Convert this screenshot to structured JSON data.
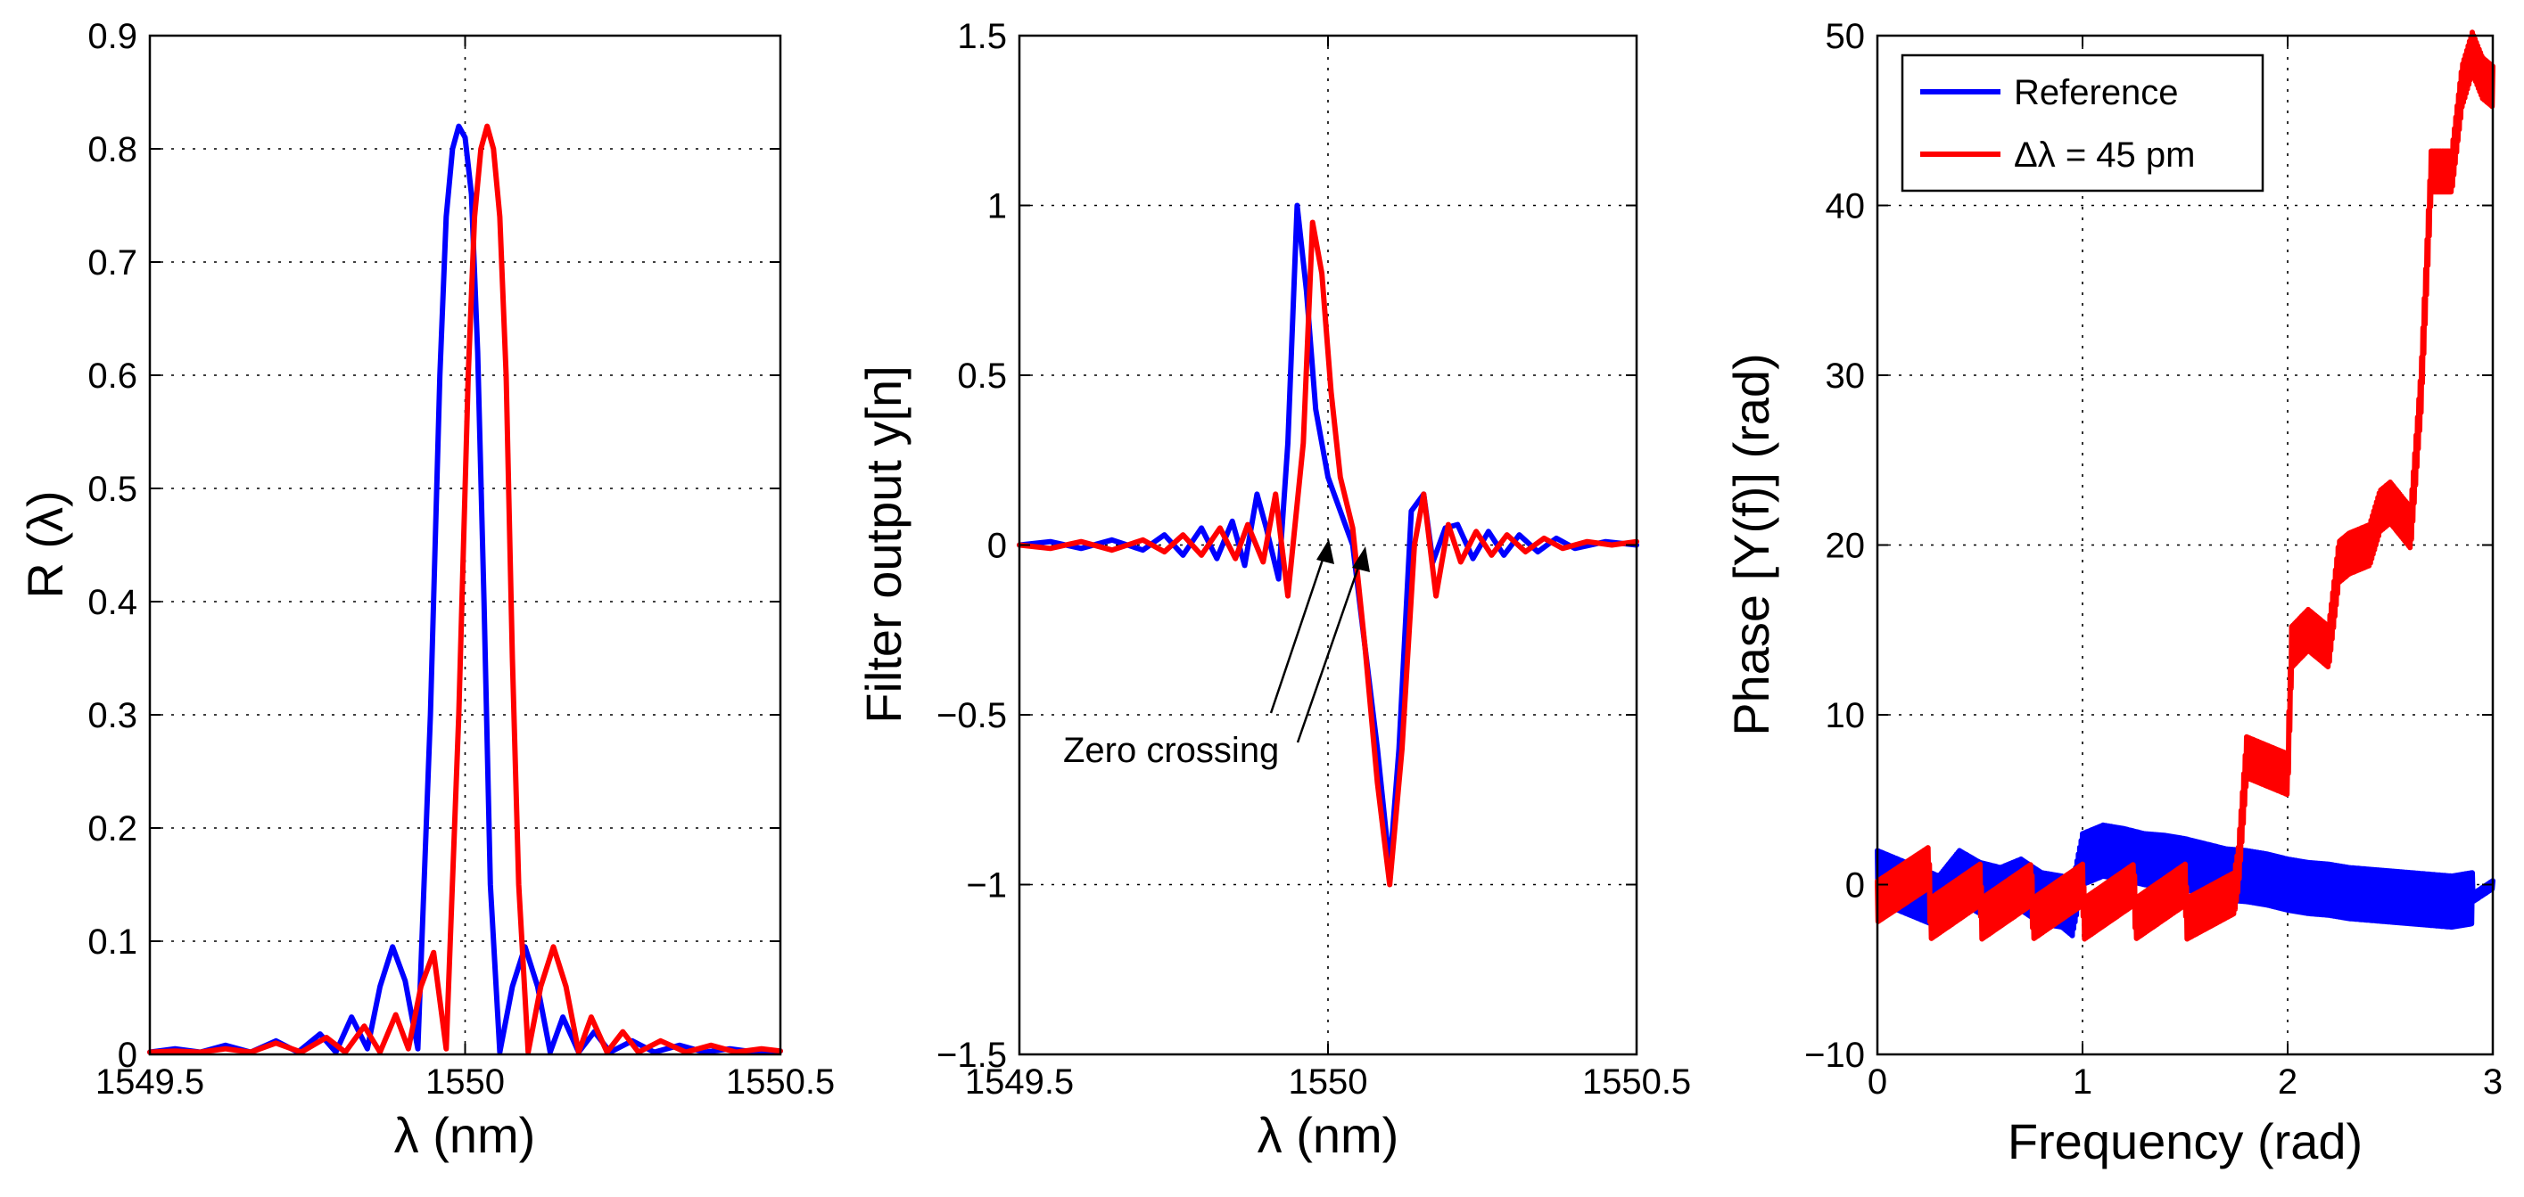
{
  "chart_data": [
    {
      "type": "line",
      "xlabel": "λ (nm)",
      "ylabel": "R (λ)",
      "xlim": [
        1549.5,
        1550.5
      ],
      "ylim": [
        0,
        0.9
      ],
      "xticks": [
        1549.5,
        1550,
        1550.5
      ],
      "xtick_labels": [
        "1549.5",
        "1550",
        "1550.5"
      ],
      "yticks": [
        0,
        0.1,
        0.2,
        0.3,
        0.4,
        0.5,
        0.6,
        0.7,
        0.8,
        0.9
      ],
      "ytick_labels": [
        "0",
        "0.1",
        "0.2",
        "0.3",
        "0.4",
        "0.5",
        "0.6",
        "0.7",
        "0.8",
        "0.9"
      ],
      "grid": true,
      "series": [
        {
          "name": "Reference",
          "color": "#0000ff",
          "x": [
            1549.5,
            1549.54,
            1549.58,
            1549.62,
            1549.66,
            1549.7,
            1549.735,
            1549.77,
            1549.795,
            1549.82,
            1549.845,
            1549.865,
            1549.885,
            1549.905,
            1549.925,
            1549.945,
            1549.96,
            1549.97,
            1549.98,
            1549.99,
            1550.0,
            1550.01,
            1550.02,
            1550.03,
            1550.04,
            1550.055,
            1550.075,
            1550.095,
            1550.115,
            1550.135,
            1550.155,
            1550.18,
            1550.205,
            1550.23,
            1550.265,
            1550.3,
            1550.34,
            1550.38,
            1550.42,
            1550.46,
            1550.5
          ],
          "y": [
            0.002,
            0.005,
            0.002,
            0.008,
            0.002,
            0.012,
            0.002,
            0.018,
            0.002,
            0.033,
            0.005,
            0.06,
            0.095,
            0.065,
            0.005,
            0.3,
            0.6,
            0.74,
            0.8,
            0.82,
            0.81,
            0.76,
            0.62,
            0.4,
            0.15,
            0.002,
            0.06,
            0.095,
            0.06,
            0.002,
            0.033,
            0.002,
            0.02,
            0.002,
            0.012,
            0.002,
            0.008,
            0.002,
            0.005,
            0.002,
            0.003
          ]
        },
        {
          "name": "Δλ = 45 pm",
          "color": "#ff0000",
          "x": [
            1549.5,
            1549.54,
            1549.58,
            1549.62,
            1549.66,
            1549.7,
            1549.74,
            1549.78,
            1549.81,
            1549.84,
            1549.865,
            1549.89,
            1549.91,
            1549.93,
            1549.95,
            1549.97,
            1549.99,
            1550.005,
            1550.015,
            1550.025,
            1550.035,
            1550.045,
            1550.055,
            1550.065,
            1550.075,
            1550.085,
            1550.1,
            1550.12,
            1550.14,
            1550.16,
            1550.18,
            1550.2,
            1550.225,
            1550.25,
            1550.275,
            1550.31,
            1550.35,
            1550.39,
            1550.43,
            1550.47,
            1550.5
          ],
          "y": [
            0.002,
            0.003,
            0.002,
            0.005,
            0.002,
            0.01,
            0.002,
            0.015,
            0.002,
            0.025,
            0.002,
            0.035,
            0.005,
            0.06,
            0.09,
            0.005,
            0.3,
            0.6,
            0.74,
            0.8,
            0.82,
            0.8,
            0.74,
            0.6,
            0.35,
            0.15,
            0.002,
            0.06,
            0.095,
            0.06,
            0.002,
            0.033,
            0.002,
            0.02,
            0.002,
            0.012,
            0.002,
            0.008,
            0.002,
            0.005,
            0.003
          ]
        }
      ]
    },
    {
      "type": "line",
      "xlabel": "λ (nm)",
      "ylabel": "Filter output y[n]",
      "xlim": [
        1549.5,
        1550.5
      ],
      "ylim": [
        -1.5,
        1.5
      ],
      "xticks": [
        1549.5,
        1550,
        1550.5
      ],
      "xtick_labels": [
        "1549.5",
        "1550",
        "1550.5"
      ],
      "yticks": [
        -1.5,
        -1,
        -0.5,
        0,
        0.5,
        1,
        1.5
      ],
      "ytick_labels": [
        "−1.5",
        "−1",
        "−0.5",
        "0",
        "0.5",
        "1",
        "1.5"
      ],
      "grid": true,
      "annotation": {
        "text": "Zero crossing",
        "arrow_targets": [
          [
            1549.999,
            0.0
          ],
          [
            1550.045,
            0.0
          ]
        ],
        "text_anchor": [
          1549.95,
          -0.57
        ]
      },
      "series": [
        {
          "name": "Reference",
          "color": "#0000ff",
          "x": [
            1549.5,
            1549.55,
            1549.6,
            1549.65,
            1549.7,
            1549.735,
            1549.765,
            1549.795,
            1549.82,
            1549.845,
            1549.865,
            1549.885,
            1549.9,
            1549.92,
            1549.935,
            1549.95,
            1549.965,
            1549.98,
            1550.0,
            1550.02,
            1550.04,
            1550.06,
            1550.08,
            1550.1,
            1550.115,
            1550.135,
            1550.155,
            1550.17,
            1550.19,
            1550.21,
            1550.235,
            1550.26,
            1550.285,
            1550.31,
            1550.34,
            1550.37,
            1550.4,
            1550.45,
            1550.5
          ],
          "y": [
            0.0,
            0.01,
            -0.01,
            0.015,
            -0.015,
            0.03,
            -0.03,
            0.05,
            -0.04,
            0.07,
            -0.06,
            0.15,
            0.05,
            -0.1,
            0.3,
            1.0,
            0.75,
            0.4,
            0.2,
            0.1,
            0.0,
            -0.3,
            -0.6,
            -0.95,
            -0.6,
            0.1,
            0.15,
            -0.05,
            0.05,
            0.06,
            -0.04,
            0.04,
            -0.03,
            0.03,
            -0.02,
            0.02,
            -0.01,
            0.01,
            0.0
          ]
        },
        {
          "name": "Δλ = 45 pm",
          "color": "#ff0000",
          "x": [
            1549.5,
            1549.55,
            1549.6,
            1549.65,
            1549.7,
            1549.735,
            1549.765,
            1549.795,
            1549.825,
            1549.85,
            1549.87,
            1549.895,
            1549.915,
            1549.935,
            1549.96,
            1549.975,
            1549.99,
            1550.005,
            1550.02,
            1550.04,
            1550.06,
            1550.08,
            1550.1,
            1550.12,
            1550.14,
            1550.155,
            1550.175,
            1550.195,
            1550.215,
            1550.24,
            1550.265,
            1550.29,
            1550.32,
            1550.35,
            1550.38,
            1550.42,
            1550.46,
            1550.5
          ],
          "y": [
            0.0,
            -0.01,
            0.01,
            -0.015,
            0.015,
            -0.02,
            0.03,
            -0.03,
            0.05,
            -0.04,
            0.06,
            -0.05,
            0.15,
            -0.15,
            0.3,
            0.95,
            0.8,
            0.45,
            0.2,
            0.05,
            -0.3,
            -0.7,
            -1.0,
            -0.6,
            0.0,
            0.15,
            -0.15,
            0.06,
            -0.05,
            0.04,
            -0.03,
            0.03,
            -0.02,
            0.02,
            -0.01,
            0.01,
            0.0,
            0.01
          ]
        }
      ]
    },
    {
      "type": "line",
      "xlabel": "Frequency (rad)",
      "ylabel": "Phase [Y(f)] (rad)",
      "xlim": [
        0,
        3
      ],
      "ylim": [
        -10,
        50
      ],
      "xticks": [
        0,
        1,
        2,
        3
      ],
      "xtick_labels": [
        "0",
        "1",
        "2",
        "3"
      ],
      "yticks": [
        -10,
        0,
        10,
        20,
        30,
        40,
        50
      ],
      "ytick_labels": [
        "−10",
        "0",
        "10",
        "20",
        "30",
        "40",
        "50"
      ],
      "grid": true,
      "legend": {
        "position": "top-left",
        "entries": [
          "Reference",
          "Δλ = 45 pm"
        ]
      },
      "series": [
        {
          "name": "Reference",
          "color": "#0000ff",
          "x": [
            0.0,
            0.1,
            0.2,
            0.3,
            0.4,
            0.5,
            0.6,
            0.7,
            0.8,
            0.9,
            0.95,
            1.0,
            1.1,
            1.2,
            1.3,
            1.4,
            1.5,
            1.6,
            1.7,
            1.8,
            1.9,
            2.0,
            2.1,
            2.2,
            2.3,
            2.4,
            2.5,
            2.6,
            2.7,
            2.8,
            2.9,
            3.0
          ],
          "y": [
            0.5,
            0.0,
            -0.5,
            -1.0,
            0.5,
            -0.2,
            -0.5,
            0.0,
            -0.8,
            -1.0,
            -1.5,
            1.5,
            2.0,
            1.8,
            1.5,
            1.4,
            1.2,
            0.9,
            0.6,
            0.5,
            0.3,
            0.0,
            -0.2,
            -0.3,
            -0.5,
            -0.6,
            -0.7,
            -0.8,
            -0.9,
            -1.0,
            -0.8,
            0.0
          ],
          "oscillation_amplitude": 1.5
        },
        {
          "name": "Δλ = 45 pm",
          "color": "#ff0000",
          "x": [
            0.0,
            0.25,
            0.26,
            0.5,
            0.51,
            0.75,
            0.76,
            1.0,
            1.01,
            1.25,
            1.26,
            1.5,
            1.51,
            1.74,
            1.76,
            1.8,
            1.9,
            2.0,
            2.02,
            2.1,
            2.2,
            2.25,
            2.3,
            2.4,
            2.45,
            2.5,
            2.6,
            2.65,
            2.7,
            2.8,
            2.85,
            2.9,
            2.95,
            3.0
          ],
          "y": [
            -1.0,
            1.0,
            -2.0,
            0.0,
            -2.0,
            0.0,
            -2.0,
            0.0,
            -2.0,
            0.0,
            -2.0,
            0.0,
            -2.0,
            -0.5,
            1.0,
            7.5,
            7.0,
            6.5,
            14.0,
            15.0,
            14.0,
            19.0,
            19.5,
            20.0,
            22.0,
            22.5,
            21.0,
            29.0,
            42.0,
            42.0,
            47.0,
            49.0,
            47.5,
            47.0
          ],
          "oscillation_amplitude": 1.2
        }
      ]
    }
  ]
}
